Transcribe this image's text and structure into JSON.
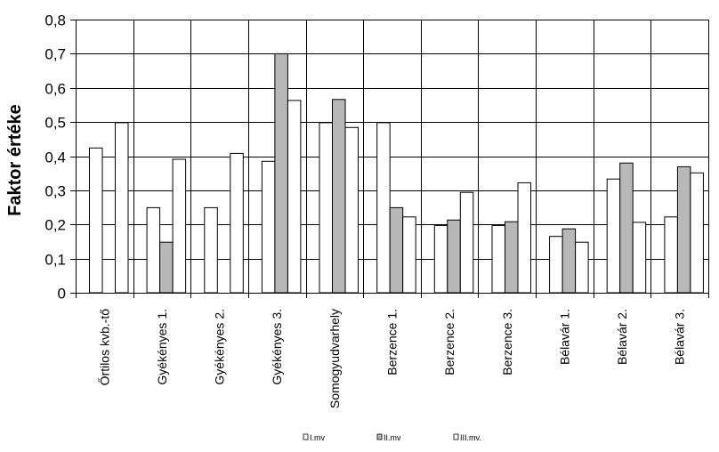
{
  "chart_data": {
    "type": "bar",
    "ylabel": "Faktor értéke",
    "xlabel": "",
    "ylim": [
      0,
      0.8
    ],
    "yticks": [
      0,
      0.1,
      0.2,
      0.3,
      0.4,
      0.5,
      0.6,
      0.7,
      0.8
    ],
    "ytick_labels": [
      "0",
      "0,1",
      "0,2",
      "0,3",
      "0,4",
      "0,5",
      "0,6",
      "0,7",
      "0,8"
    ],
    "grid": true,
    "legend_position": "bottom",
    "categories": [
      "Őrtilos kvb.-tő",
      "Gyékényes 1.",
      "Gyékényes 2.",
      "Gyékényes 3.",
      "Somogyudvarhely",
      "Berzence 1.",
      "Berzence 2.",
      "Berzence 3.",
      "Bélavár 1.",
      "Bélavár 2.",
      "Bélavár 3."
    ],
    "series": [
      {
        "name": "I.mv",
        "color": "#ffffff",
        "values": [
          0.424,
          0.249,
          0.249,
          0.385,
          0.498,
          0.498,
          0.197,
          0.197,
          0.165,
          0.333,
          0.222
        ]
      },
      {
        "name": "II.mv",
        "color": "#b8b8b8",
        "values": [
          0,
          0.148,
          0,
          0.7,
          0.566,
          0.249,
          0.213,
          0.208,
          0.187,
          0.38,
          0.369
        ]
      },
      {
        "name": "III.mv.",
        "color": "#ffffff",
        "values": [
          0.498,
          0.391,
          0.408,
          0.563,
          0.484,
          0.222,
          0.294,
          0.322,
          0.148,
          0.206,
          0.351
        ]
      }
    ]
  }
}
